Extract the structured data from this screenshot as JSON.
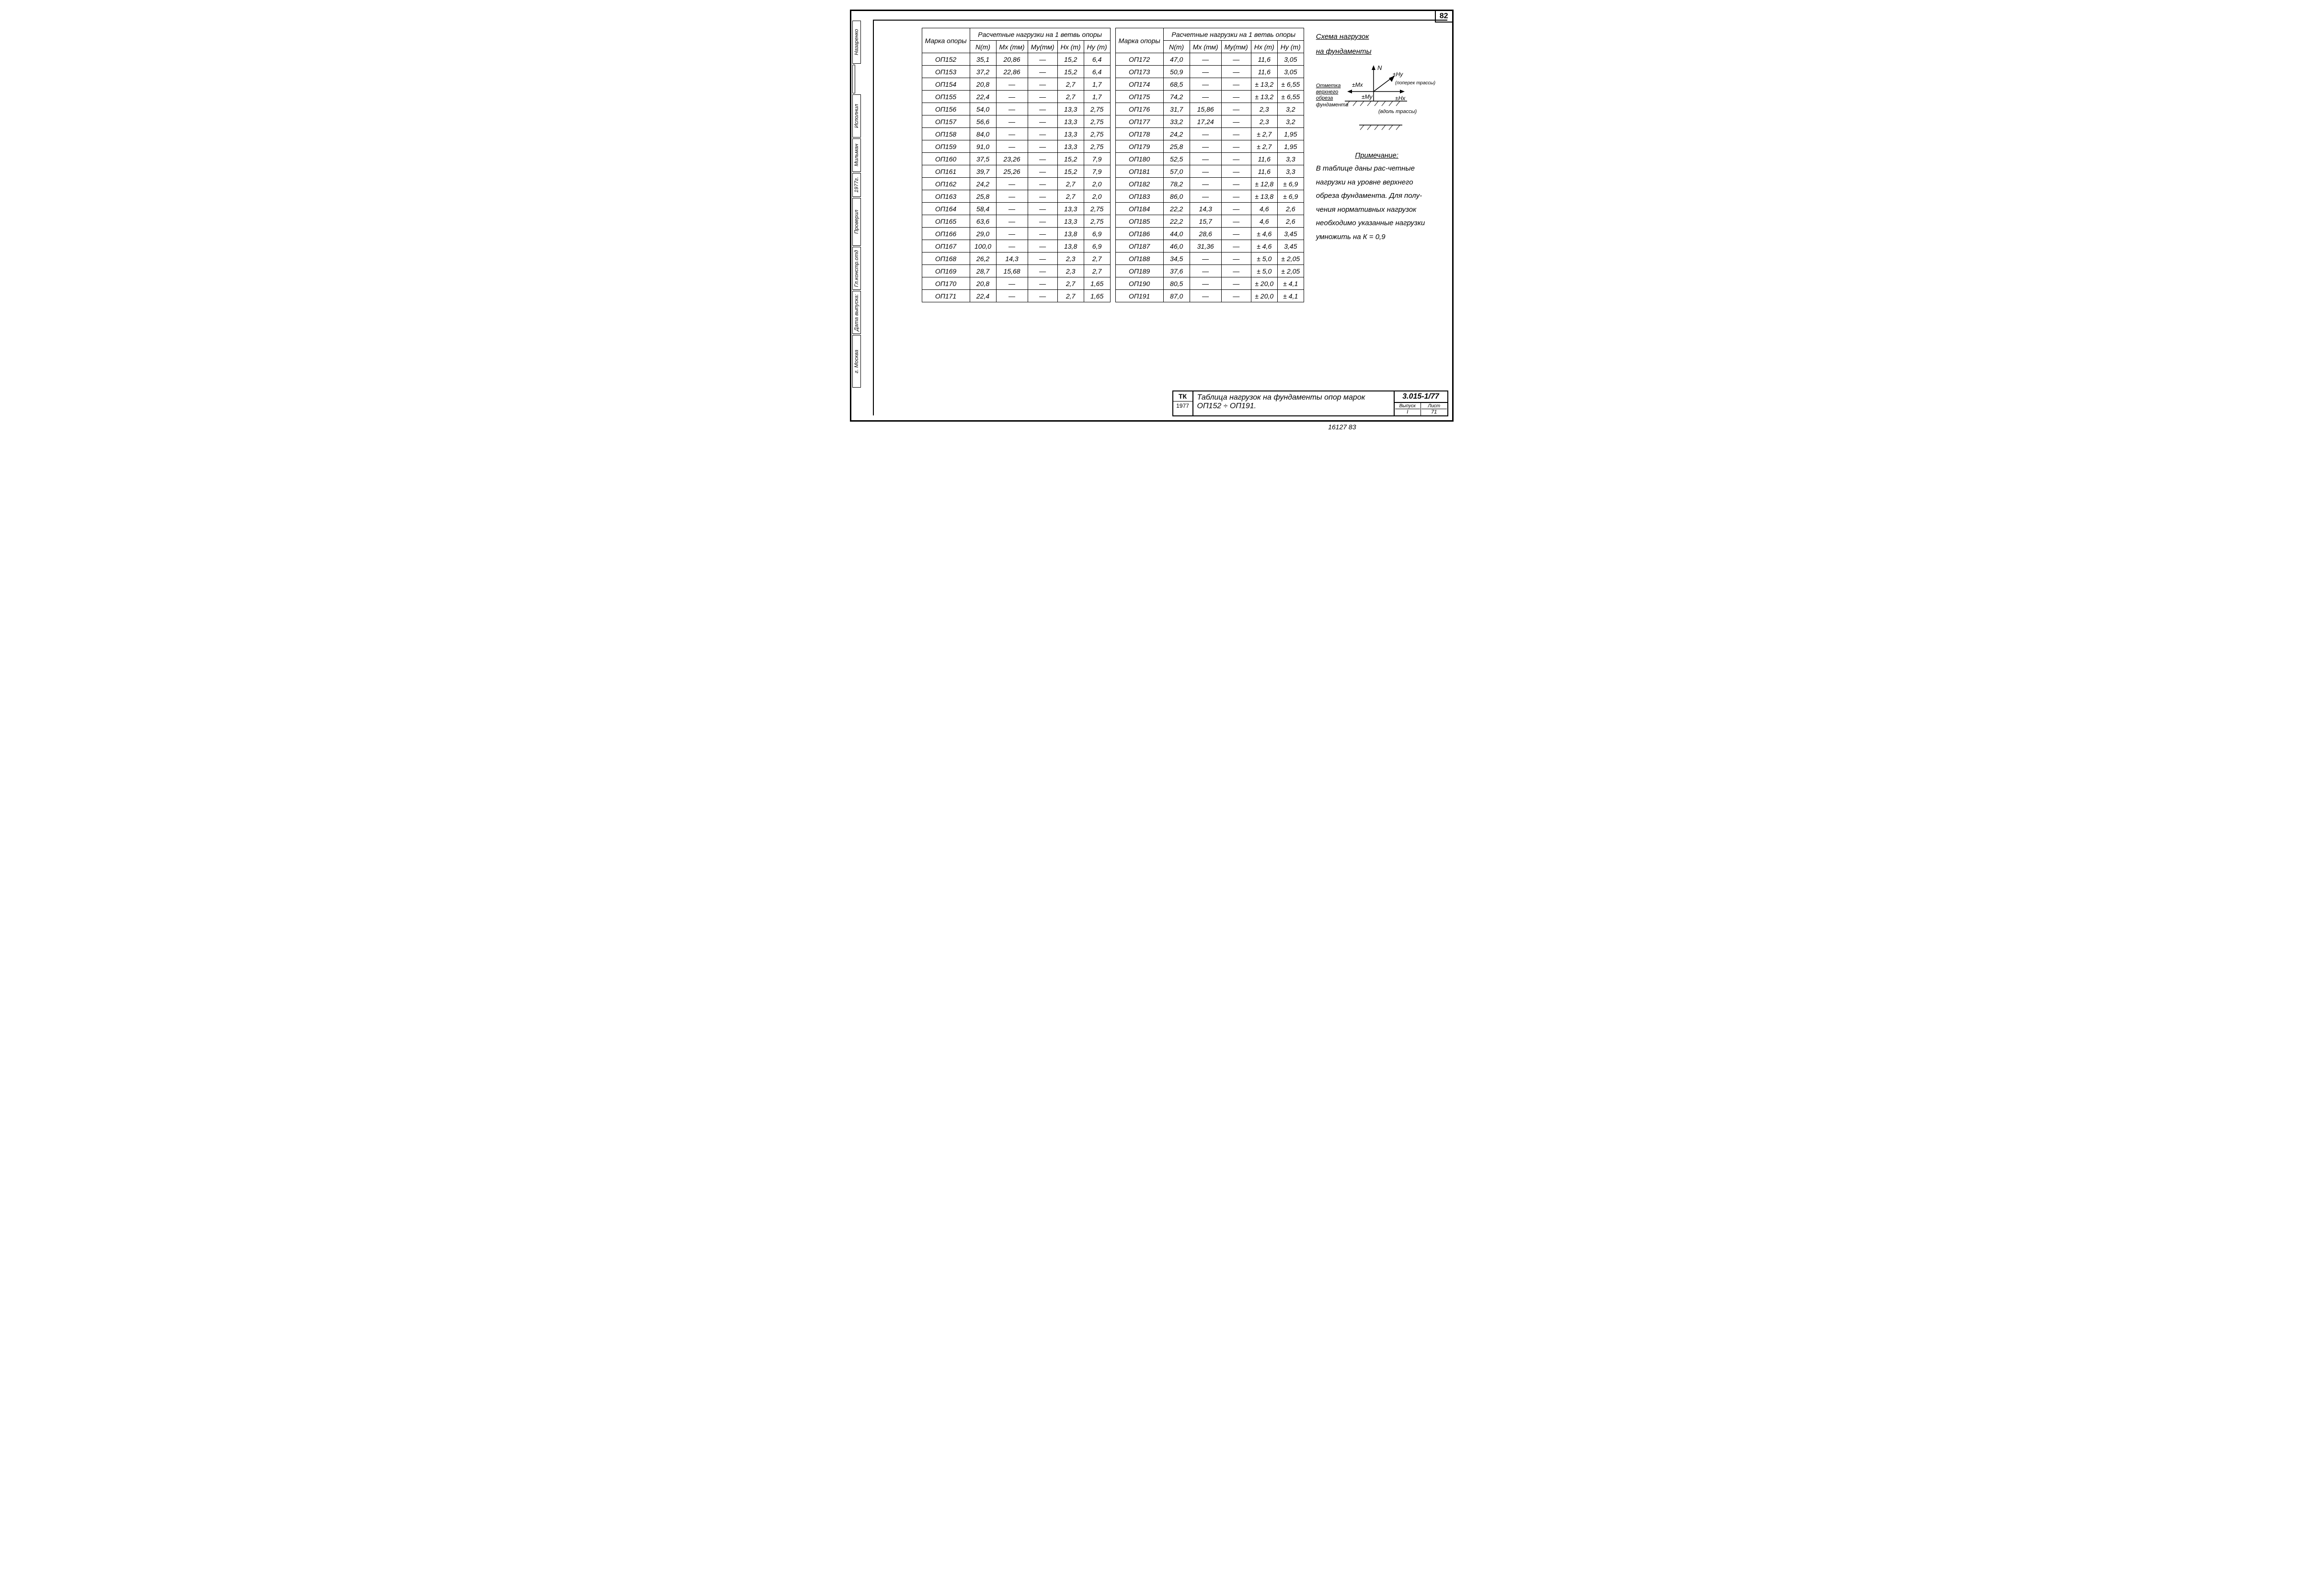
{
  "page_number": "82",
  "side": {
    "city": "г. Москва",
    "date_label": "Дата выпуска:",
    "chief": "Гл.констр.отд",
    "checked": "Проверил",
    "author": "Мильман",
    "year": "1977г.",
    "exec": "Исполнил",
    "name": "Назаренко"
  },
  "table": {
    "header_mark": "Марка опоры",
    "header_loads": "Расчетные нагрузки на 1 ветвь опоры",
    "cols": [
      "N(т)",
      "Mx (тм)",
      "My(тм)",
      "Hx (т)",
      "Hy (т)"
    ],
    "left_rows": [
      [
        "ОП152",
        "35,1",
        "20,86",
        "—",
        "15,2",
        "6,4"
      ],
      [
        "ОП153",
        "37,2",
        "22,86",
        "—",
        "15,2",
        "6,4"
      ],
      [
        "ОП154",
        "20,8",
        "—",
        "—",
        "2,7",
        "1,7"
      ],
      [
        "ОП155",
        "22,4",
        "—",
        "—",
        "2,7",
        "1,7"
      ],
      [
        "ОП156",
        "54,0",
        "—",
        "—",
        "13,3",
        "2,75"
      ],
      [
        "ОП157",
        "56,6",
        "—",
        "—",
        "13,3",
        "2,75"
      ],
      [
        "ОП158",
        "84,0",
        "—",
        "—",
        "13,3",
        "2,75"
      ],
      [
        "ОП159",
        "91,0",
        "—",
        "—",
        "13,3",
        "2,75"
      ],
      [
        "ОП160",
        "37,5",
        "23,26",
        "—",
        "15,2",
        "7,9"
      ],
      [
        "ОП161",
        "39,7",
        "25,26",
        "—",
        "15,2",
        "7,9"
      ],
      [
        "ОП162",
        "24,2",
        "—",
        "—",
        "2,7",
        "2,0"
      ],
      [
        "ОП163",
        "25,8",
        "—",
        "—",
        "2,7",
        "2,0"
      ],
      [
        "ОП164",
        "58,4",
        "—",
        "—",
        "13,3",
        "2,75"
      ],
      [
        "ОП165",
        "63,6",
        "—",
        "—",
        "13,3",
        "2,75"
      ],
      [
        "ОП166",
        "29,0",
        "—",
        "—",
        "13,8",
        "6,9"
      ],
      [
        "ОП167",
        "100,0",
        "—",
        "—",
        "13,8",
        "6,9"
      ],
      [
        "ОП168",
        "26,2",
        "14,3",
        "—",
        "2,3",
        "2,7"
      ],
      [
        "ОП169",
        "28,7",
        "15,68",
        "—",
        "2,3",
        "2,7"
      ],
      [
        "ОП170",
        "20,8",
        "—",
        "—",
        "2,7",
        "1,65"
      ],
      [
        "ОП171",
        "22,4",
        "—",
        "—",
        "2,7",
        "1,65"
      ]
    ],
    "right_rows": [
      [
        "ОП172",
        "47,0",
        "—",
        "—",
        "11,6",
        "3,05"
      ],
      [
        "ОП173",
        "50,9",
        "—",
        "—",
        "11,6",
        "3,05"
      ],
      [
        "ОП174",
        "68,5",
        "—",
        "—",
        "± 13,2",
        "± 6,55"
      ],
      [
        "ОП175",
        "74,2",
        "—",
        "—",
        "± 13,2",
        "± 6,55"
      ],
      [
        "ОП176",
        "31,7",
        "15,86",
        "—",
        "2,3",
        "3,2"
      ],
      [
        "ОП177",
        "33,2",
        "17,24",
        "—",
        "2,3",
        "3,2"
      ],
      [
        "ОП178",
        "24,2",
        "—",
        "—",
        "± 2,7",
        "1,95"
      ],
      [
        "ОП179",
        "25,8",
        "—",
        "—",
        "± 2,7",
        "1,95"
      ],
      [
        "ОП180",
        "52,5",
        "—",
        "—",
        "11,6",
        "3,3"
      ],
      [
        "ОП181",
        "57,0",
        "—",
        "—",
        "11,6",
        "3,3"
      ],
      [
        "ОП182",
        "78,2",
        "—",
        "—",
        "± 12,8",
        "± 6,9"
      ],
      [
        "ОП183",
        "86,0",
        "—",
        "—",
        "± 13,8",
        "± 6,9"
      ],
      [
        "ОП184",
        "22,2",
        "14,3",
        "—",
        "4,6",
        "2,6"
      ],
      [
        "ОП185",
        "22,2",
        "15,7",
        "—",
        "4,6",
        "2,6"
      ],
      [
        "ОП186",
        "44,0",
        "28,6",
        "—",
        "± 4,6",
        "3,45"
      ],
      [
        "ОП187",
        "46,0",
        "31,36",
        "—",
        "± 4,6",
        "3,45"
      ],
      [
        "ОП188",
        "34,5",
        "—",
        "—",
        "± 5,0",
        "± 2,05"
      ],
      [
        "ОП189",
        "37,6",
        "—",
        "—",
        "± 5,0",
        "± 2,05"
      ],
      [
        "ОП190",
        "80,5",
        "—",
        "—",
        "± 20,0",
        "± 4,1"
      ],
      [
        "ОП191",
        "87,0",
        "—",
        "—",
        "± 20,0",
        "± 4,1"
      ]
    ]
  },
  "right_panel": {
    "title1": "Схема нагрузок",
    "title2": "на фундаменты",
    "diagram": {
      "n_label": "N",
      "mx": "±Mx",
      "my": "±My",
      "hx": "±Hx",
      "hy": "±Hy",
      "side_text1": "Отметка",
      "side_text2": "верхнего",
      "side_text3": "обреза",
      "side_text4": "фундамента",
      "along": "(вдоль трассы)",
      "across": "(поперек трассы)"
    },
    "note_title": "Примечание:",
    "note_body": "В таблице даны рас-четные нагрузки на уровне верхнего обреза фундамента. Для полу-чения нормативных нагрузок необходимо указанные нагрузки умножить на К = 0,9"
  },
  "title_block": {
    "tk": "ТК",
    "year": "1977",
    "desc": "Таблица нагрузок на фундаменты опор марок ОП152 ÷ ОП191.",
    "code": "3.015-1/77",
    "issue_label": "Выпуск",
    "issue": "I",
    "sheet_label": "Лист",
    "sheet": "71"
  },
  "footer": "16127    83"
}
